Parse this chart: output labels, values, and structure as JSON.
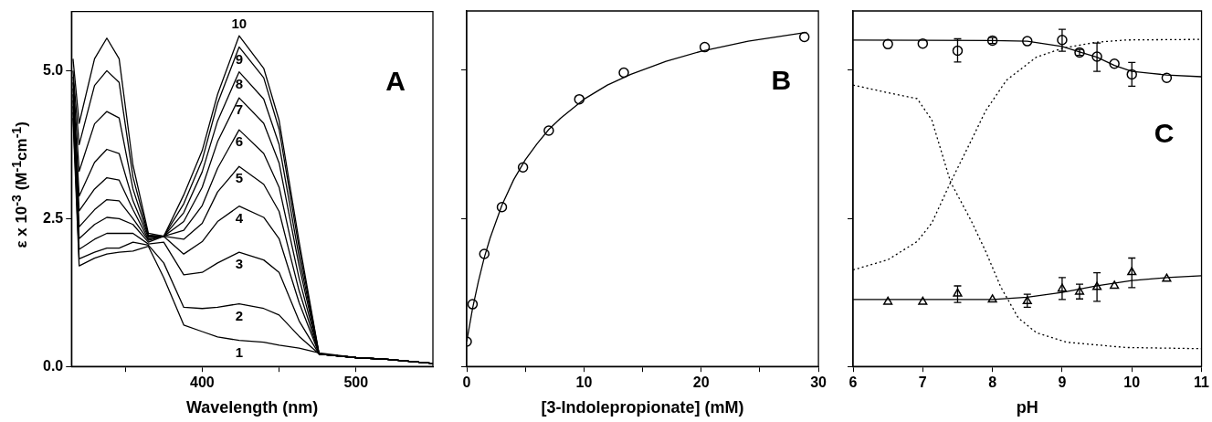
{
  "chart_data": [
    {
      "type": "line",
      "title": "A",
      "xlabel": "Wavelength (nm)",
      "ylabel": "ε x 10$^{-3}$  (M$^{-1}$cm$^{-1}$)",
      "marker": "none",
      "line_style": "solid",
      "x": [
        316,
        320,
        330,
        338,
        346,
        355,
        365,
        375,
        388,
        400,
        410,
        424,
        440,
        450,
        463,
        476,
        500,
        520,
        550
      ],
      "xlim": [
        315,
        550
      ],
      "xticks": [
        {
          "value": 350,
          "label": null
        },
        400,
        {
          "value": 450,
          "label": null
        },
        500
      ],
      "ylim": [
        0,
        6
      ],
      "yticks": [
        {
          "value": 0,
          "label": "0.0"
        },
        2.5,
        {
          "value": 5,
          "label": "5.0"
        }
      ],
      "series": [
        {
          "name": "1",
          "color": "#000000",
          "values": [
            4.2,
            1.7,
            1.83,
            1.9,
            1.93,
            1.95,
            2.03,
            1.5,
            0.7,
            0.59,
            0.5,
            0.44,
            0.41,
            0.36,
            0.31,
            0.23,
            0.15,
            0.12,
            0.05
          ]
        },
        {
          "name": "2",
          "color": "#000000",
          "values": [
            4.3,
            1.82,
            1.93,
            2.0,
            2.0,
            2.1,
            2.05,
            1.75,
            1.0,
            0.98,
            1.0,
            1.06,
            0.98,
            0.87,
            0.51,
            0.21,
            0.15,
            0.12,
            0.05
          ]
        },
        {
          "name": "3",
          "color": "#000000",
          "values": [
            4.4,
            1.98,
            2.15,
            2.25,
            2.25,
            2.25,
            2.07,
            2.1,
            1.55,
            1.59,
            1.75,
            1.93,
            1.8,
            1.59,
            0.77,
            0.21,
            0.15,
            0.12,
            0.05
          ]
        },
        {
          "name": "4",
          "color": "#000000",
          "values": [
            4.5,
            2.16,
            2.4,
            2.52,
            2.5,
            2.4,
            2.1,
            2.2,
            1.9,
            2.11,
            2.45,
            2.71,
            2.52,
            2.16,
            1.08,
            0.21,
            0.15,
            0.12,
            0.05
          ]
        },
        {
          "name": "5",
          "color": "#000000",
          "values": [
            4.6,
            2.36,
            2.65,
            2.82,
            2.8,
            2.5,
            2.13,
            2.2,
            2.15,
            2.42,
            2.95,
            3.38,
            3.08,
            2.62,
            1.28,
            0.21,
            0.15,
            0.12,
            0.05
          ]
        },
        {
          "name": "6",
          "color": "#000000",
          "values": [
            4.7,
            2.63,
            3.0,
            3.19,
            3.15,
            2.65,
            2.15,
            2.2,
            2.3,
            2.72,
            3.35,
            4.0,
            3.6,
            3.03,
            1.49,
            0.21,
            0.15,
            0.12,
            0.05
          ]
        },
        {
          "name": "7",
          "color": "#000000",
          "values": [
            4.8,
            2.88,
            3.45,
            3.67,
            3.6,
            2.8,
            2.18,
            2.2,
            2.45,
            3.03,
            3.8,
            4.54,
            4.11,
            3.44,
            1.7,
            0.21,
            0.15,
            0.12,
            0.05
          ]
        },
        {
          "name": "8",
          "color": "#000000",
          "values": [
            4.9,
            3.3,
            4.1,
            4.31,
            4.2,
            3.0,
            2.2,
            2.2,
            2.6,
            3.29,
            4.15,
            4.98,
            4.52,
            3.75,
            1.85,
            0.21,
            0.15,
            0.12,
            0.05
          ]
        },
        {
          "name": "9",
          "color": "#000000",
          "values": [
            5.0,
            3.75,
            4.75,
            5.0,
            4.8,
            3.2,
            2.22,
            2.2,
            2.75,
            3.49,
            4.45,
            5.4,
            4.88,
            4.01,
            2.0,
            0.21,
            0.15,
            0.12,
            0.05
          ]
        },
        {
          "name": "10",
          "color": "#000000",
          "values": [
            5.2,
            4.11,
            5.2,
            5.55,
            5.2,
            3.4,
            2.25,
            2.2,
            2.9,
            3.65,
            4.6,
            5.59,
            5.04,
            4.16,
            2.11,
            0.21,
            0.15,
            0.12,
            0.05
          ]
        }
      ]
    },
    {
      "type": "scatter",
      "title": "B",
      "xlabel": "[3-Indolepropionate] (mM)",
      "tick_labels": "x",
      "xlim": [
        0,
        30
      ],
      "xticks": [
        0,
        {
          "value": 5,
          "label": null
        },
        10,
        {
          "value": 15,
          "label": null
        },
        20,
        {
          "value": 25,
          "label": null
        },
        30
      ],
      "ylim": [
        0,
        6
      ],
      "yticks": [
        0,
        2.5,
        5
      ],
      "series": [
        {
          "type": "line",
          "marker": "none",
          "line_style": "solid",
          "color": "#000000",
          "x": [
            0,
            0.5,
            1,
            1.5,
            2,
            3,
            4,
            5,
            6,
            7,
            8,
            10,
            12,
            14,
            17,
            20,
            24,
            29
          ],
          "values": [
            0.42,
            0.98,
            1.44,
            1.84,
            2.17,
            2.72,
            3.15,
            3.49,
            3.76,
            4.0,
            4.19,
            4.51,
            4.75,
            4.93,
            5.15,
            5.32,
            5.49,
            5.64
          ]
        },
        {
          "marker": "circle",
          "color": "#000000",
          "x": [
            0,
            0.5,
            1.5,
            3,
            4.8,
            7,
            9.6,
            13.4,
            20.3,
            28.8
          ],
          "values": [
            0.42,
            1.05,
            1.9,
            2.69,
            3.36,
            3.98,
            4.51,
            4.96,
            5.39,
            5.56
          ]
        }
      ]
    },
    {
      "type": "scatter",
      "title": "C",
      "xlabel": "pH",
      "tick_labels": "x",
      "xlim": [
        6,
        11
      ],
      "xticks": [
        6,
        7,
        8,
        9,
        10,
        11
      ],
      "ylim": [
        0,
        6
      ],
      "yticks": [
        0,
        2.5,
        5
      ],
      "series": [
        {
          "type": "line",
          "marker": "none",
          "line_style": "dotted",
          "color": "#000000",
          "x": [
            6,
            6.5,
            6.92,
            7.13,
            7.4,
            7.69,
            7.9,
            8.12,
            8.37,
            8.63,
            9.06,
            9.91,
            11
          ],
          "values": [
            4.75,
            4.62,
            4.52,
            4.16,
            3.11,
            2.47,
            1.95,
            1.34,
            0.82,
            0.57,
            0.41,
            0.32,
            0.3
          ]
        },
        {
          "type": "line",
          "marker": "none",
          "line_style": "dotted",
          "color": "#000000",
          "x": [
            6,
            6.5,
            6.92,
            7.13,
            7.4,
            7.69,
            7.9,
            8.2,
            8.63,
            9,
            9.48,
            9.91,
            11
          ],
          "values": [
            1.63,
            1.8,
            2.11,
            2.42,
            3.11,
            3.8,
            4.31,
            4.83,
            5.22,
            5.37,
            5.47,
            5.51,
            5.52
          ]
        },
        {
          "type": "line",
          "marker": "none",
          "line_style": "solid",
          "color": "#000000",
          "x": [
            6,
            8,
            8.5,
            9,
            9.25,
            9.5,
            9.75,
            10,
            10.25,
            10.5,
            11
          ],
          "values": [
            5.51,
            5.5,
            5.49,
            5.4,
            5.31,
            5.22,
            5.08,
            4.98,
            4.95,
            4.92,
            4.89
          ]
        },
        {
          "type": "line",
          "marker": "none",
          "line_style": "solid",
          "color": "#000000",
          "x": [
            6,
            8,
            8.5,
            9,
            9.5,
            10,
            10.5,
            11
          ],
          "values": [
            1.13,
            1.13,
            1.17,
            1.25,
            1.36,
            1.45,
            1.5,
            1.53
          ]
        },
        {
          "marker": "circle",
          "color": "#000000",
          "x": [
            6.5,
            7,
            7.5,
            8,
            8.5,
            9,
            9.25,
            9.5,
            9.75,
            10,
            10.5
          ],
          "values": [
            5.44,
            5.45,
            5.33,
            5.5,
            5.49,
            5.51,
            5.3,
            5.23,
            5.11,
            4.93,
            4.87
          ],
          "errors": [
            null,
            null,
            [
              5.14,
              5.53
            ],
            [
              5.45,
              5.55
            ],
            null,
            [
              5.32,
              5.69
            ],
            [
              5.25,
              5.35
            ],
            [
              4.98,
              5.46
            ],
            null,
            [
              4.73,
              5.13
            ],
            null
          ]
        },
        {
          "marker": "triangle",
          "color": "#000000",
          "x": [
            6.5,
            7,
            7.5,
            8,
            8.5,
            9,
            9.25,
            9.5,
            9.75,
            10,
            10.5
          ],
          "values": [
            1.09,
            1.09,
            1.23,
            1.13,
            1.1,
            1.31,
            1.26,
            1.34,
            1.36,
            1.59,
            1.48
          ],
          "errors": [
            null,
            null,
            [
              1.08,
              1.36
            ],
            null,
            [
              1.0,
              1.22
            ],
            [
              1.13,
              1.5
            ],
            [
              1.14,
              1.39
            ],
            [
              1.1,
              1.58
            ],
            null,
            [
              1.33,
              1.83
            ],
            null
          ]
        }
      ]
    }
  ]
}
